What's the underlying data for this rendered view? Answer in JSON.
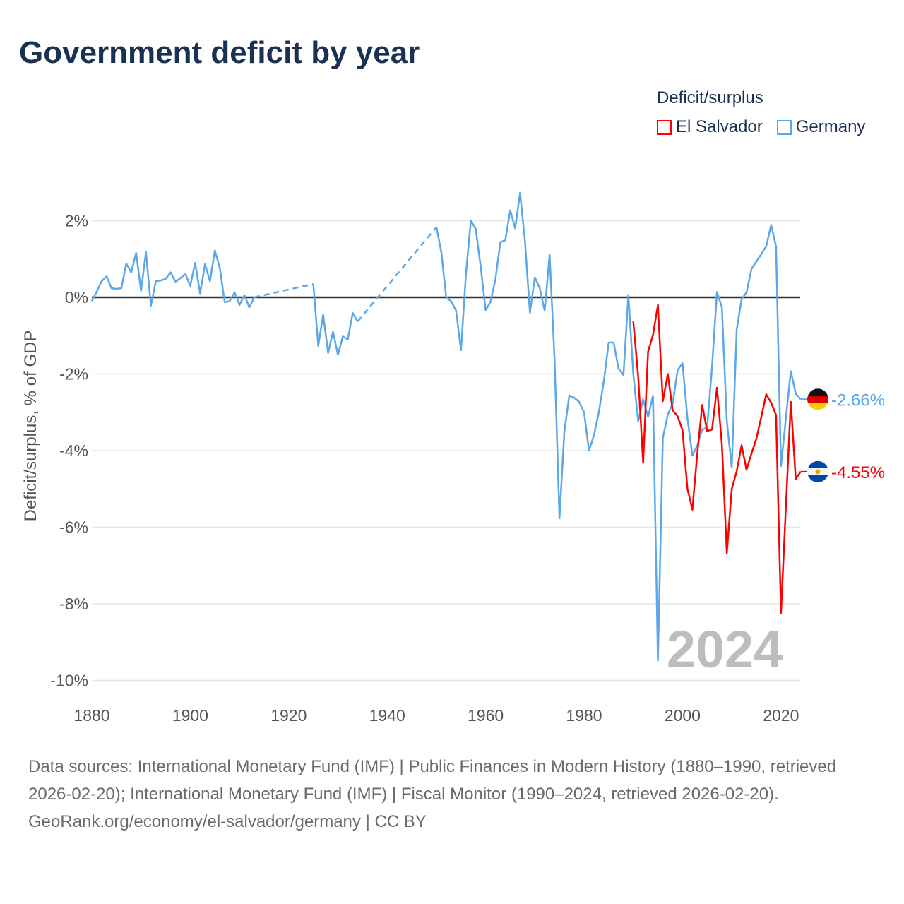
{
  "title": "Government deficit by year",
  "legend": {
    "title": "Deficit/surplus",
    "items": [
      {
        "label": "El Salvador",
        "color": "#ff0000"
      },
      {
        "label": "Germany",
        "color": "#5ba7e8"
      }
    ]
  },
  "year_label": "2024",
  "footer": {
    "sources": "Data sources: International Monetary Fund (IMF) | Public Finances in Modern History (1880–1990, retrieved 2026-02-20); International Monetary Fund (IMF) | Fiscal Monitor (1990–2024, retrieved 2026-02-20).",
    "credit": "GeoRank.org/economy/el-salvador/germany | CC BY"
  },
  "chart_data": {
    "type": "line",
    "title": "Government deficit by year",
    "xlabel": "",
    "ylabel": "Deficit/surplus, % of GDP",
    "xlim": [
      1880,
      2024
    ],
    "ylim": [
      -10,
      2.8
    ],
    "xticks": [
      1880,
      1900,
      1920,
      1940,
      1960,
      1980,
      2000,
      2020
    ],
    "xtick_labels": [
      "1880",
      "1900",
      "1920",
      "1940",
      "1960",
      "1980",
      "2000",
      "2020"
    ],
    "yticks": [
      2,
      0,
      -2,
      -4,
      -6,
      -8,
      -10
    ],
    "ytick_labels": [
      "2%",
      "0%",
      "-2%",
      "-4%",
      "-6%",
      "-8%",
      "-10%"
    ],
    "grid": true,
    "legend_position": "top-right",
    "series": [
      {
        "name": "Germany",
        "color": "#5ba7e8",
        "end_label": "-2.66%",
        "flag": "germany-flag",
        "points": [
          [
            1880,
            -0.1
          ],
          [
            1881,
            0.15
          ],
          [
            1882,
            0.42
          ],
          [
            1883,
            0.55
          ],
          [
            1884,
            0.24
          ],
          [
            1885,
            0.22
          ],
          [
            1886,
            0.24
          ],
          [
            1887,
            0.88
          ],
          [
            1888,
            0.65
          ],
          [
            1889,
            1.16
          ],
          [
            1890,
            0.17
          ],
          [
            1891,
            1.18
          ],
          [
            1892,
            -0.22
          ],
          [
            1893,
            0.42
          ],
          [
            1894,
            0.44
          ],
          [
            1895,
            0.48
          ],
          [
            1896,
            0.65
          ],
          [
            1897,
            0.41
          ],
          [
            1898,
            0.5
          ],
          [
            1899,
            0.61
          ],
          [
            1900,
            0.3
          ],
          [
            1901,
            0.9
          ],
          [
            1902,
            0.1
          ],
          [
            1903,
            0.87
          ],
          [
            1904,
            0.42
          ],
          [
            1905,
            1.22
          ],
          [
            1906,
            0.77
          ],
          [
            1907,
            -0.13
          ],
          [
            1908,
            -0.1
          ],
          [
            1909,
            0.13
          ],
          [
            1910,
            -0.2
          ],
          [
            1911,
            0.06
          ],
          [
            1912,
            -0.26
          ],
          [
            1913,
            0.0
          ],
          [
            1925,
            0.35
          ],
          [
            1926,
            -1.27
          ],
          [
            1927,
            -0.45
          ],
          [
            1928,
            -1.45
          ],
          [
            1929,
            -0.9
          ],
          [
            1930,
            -1.5
          ],
          [
            1931,
            -1.02
          ],
          [
            1932,
            -1.1
          ],
          [
            1933,
            -0.41
          ],
          [
            1934,
            -0.63
          ],
          [
            1950,
            1.83
          ],
          [
            1951,
            1.18
          ],
          [
            1952,
            0.0
          ],
          [
            1953,
            -0.1
          ],
          [
            1954,
            -0.35
          ],
          [
            1955,
            -1.38
          ],
          [
            1956,
            0.6
          ],
          [
            1957,
            2.0
          ],
          [
            1958,
            1.78
          ],
          [
            1959,
            0.8
          ],
          [
            1960,
            -0.33
          ],
          [
            1961,
            -0.12
          ],
          [
            1962,
            0.48
          ],
          [
            1963,
            1.44
          ],
          [
            1964,
            1.49
          ],
          [
            1965,
            2.27
          ],
          [
            1966,
            1.8
          ],
          [
            1967,
            2.73
          ],
          [
            1968,
            1.46
          ],
          [
            1969,
            -0.4
          ],
          [
            1970,
            0.52
          ],
          [
            1971,
            0.24
          ],
          [
            1972,
            -0.35
          ],
          [
            1973,
            1.12
          ],
          [
            1974,
            -1.6
          ],
          [
            1975,
            -5.77
          ],
          [
            1976,
            -3.49
          ],
          [
            1977,
            -2.56
          ],
          [
            1978,
            -2.62
          ],
          [
            1979,
            -2.73
          ],
          [
            1980,
            -3.0
          ],
          [
            1981,
            -4.0
          ],
          [
            1982,
            -3.6
          ],
          [
            1983,
            -3.0
          ],
          [
            1984,
            -2.2
          ],
          [
            1985,
            -1.18
          ],
          [
            1986,
            -1.18
          ],
          [
            1987,
            -1.86
          ],
          [
            1988,
            -2.03
          ],
          [
            1989,
            0.06
          ],
          [
            1990,
            -2.0
          ],
          [
            1991,
            -3.23
          ],
          [
            1992,
            -2.66
          ],
          [
            1993,
            -3.12
          ],
          [
            1994,
            -2.57
          ],
          [
            1995,
            -9.48
          ],
          [
            1996,
            -3.67
          ],
          [
            1997,
            -3.07
          ],
          [
            1998,
            -2.77
          ],
          [
            1999,
            -1.9
          ],
          [
            2000,
            -1.72
          ],
          [
            2001,
            -3.15
          ],
          [
            2002,
            -4.13
          ],
          [
            2003,
            -3.87
          ],
          [
            2004,
            -3.45
          ],
          [
            2005,
            -3.4
          ],
          [
            2006,
            -1.81
          ],
          [
            2007,
            0.14
          ],
          [
            2008,
            -0.26
          ],
          [
            2009,
            -3.23
          ],
          [
            2010,
            -4.44
          ],
          [
            2011,
            -0.85
          ],
          [
            2012,
            -0.05
          ],
          [
            2013,
            0.13
          ],
          [
            2014,
            0.74
          ],
          [
            2015,
            0.93
          ],
          [
            2016,
            1.13
          ],
          [
            2017,
            1.33
          ],
          [
            2018,
            1.89
          ],
          [
            2019,
            1.33
          ],
          [
            2020,
            -4.4
          ],
          [
            2021,
            -3.15
          ],
          [
            2022,
            -1.93
          ],
          [
            2023,
            -2.51
          ],
          [
            2024,
            -2.66
          ]
        ]
      },
      {
        "name": "El Salvador",
        "color": "#ff0000",
        "end_label": "-4.55%",
        "flag": "el-salvador-flag",
        "points": [
          [
            1990,
            -0.63
          ],
          [
            1991,
            -2.07
          ],
          [
            1992,
            -4.32
          ],
          [
            1993,
            -1.42
          ],
          [
            1994,
            -0.98
          ],
          [
            1995,
            -0.2
          ],
          [
            1996,
            -2.71
          ],
          [
            1997,
            -2.0
          ],
          [
            1998,
            -2.95
          ],
          [
            1999,
            -3.1
          ],
          [
            2000,
            -3.47
          ],
          [
            2001,
            -5.0
          ],
          [
            2002,
            -5.54
          ],
          [
            2003,
            -4.08
          ],
          [
            2004,
            -2.81
          ],
          [
            2005,
            -3.49
          ],
          [
            2006,
            -3.45
          ],
          [
            2007,
            -2.36
          ],
          [
            2008,
            -3.84
          ],
          [
            2009,
            -6.68
          ],
          [
            2010,
            -5.0
          ],
          [
            2011,
            -4.54
          ],
          [
            2012,
            -3.86
          ],
          [
            2013,
            -4.5
          ],
          [
            2014,
            -4.08
          ],
          [
            2015,
            -3.69
          ],
          [
            2016,
            -3.12
          ],
          [
            2017,
            -2.53
          ],
          [
            2018,
            -2.75
          ],
          [
            2019,
            -3.07
          ],
          [
            2020,
            -8.24
          ],
          [
            2021,
            -5.46
          ],
          [
            2022,
            -2.73
          ],
          [
            2023,
            -4.74
          ],
          [
            2024,
            -4.55
          ]
        ]
      }
    ]
  }
}
